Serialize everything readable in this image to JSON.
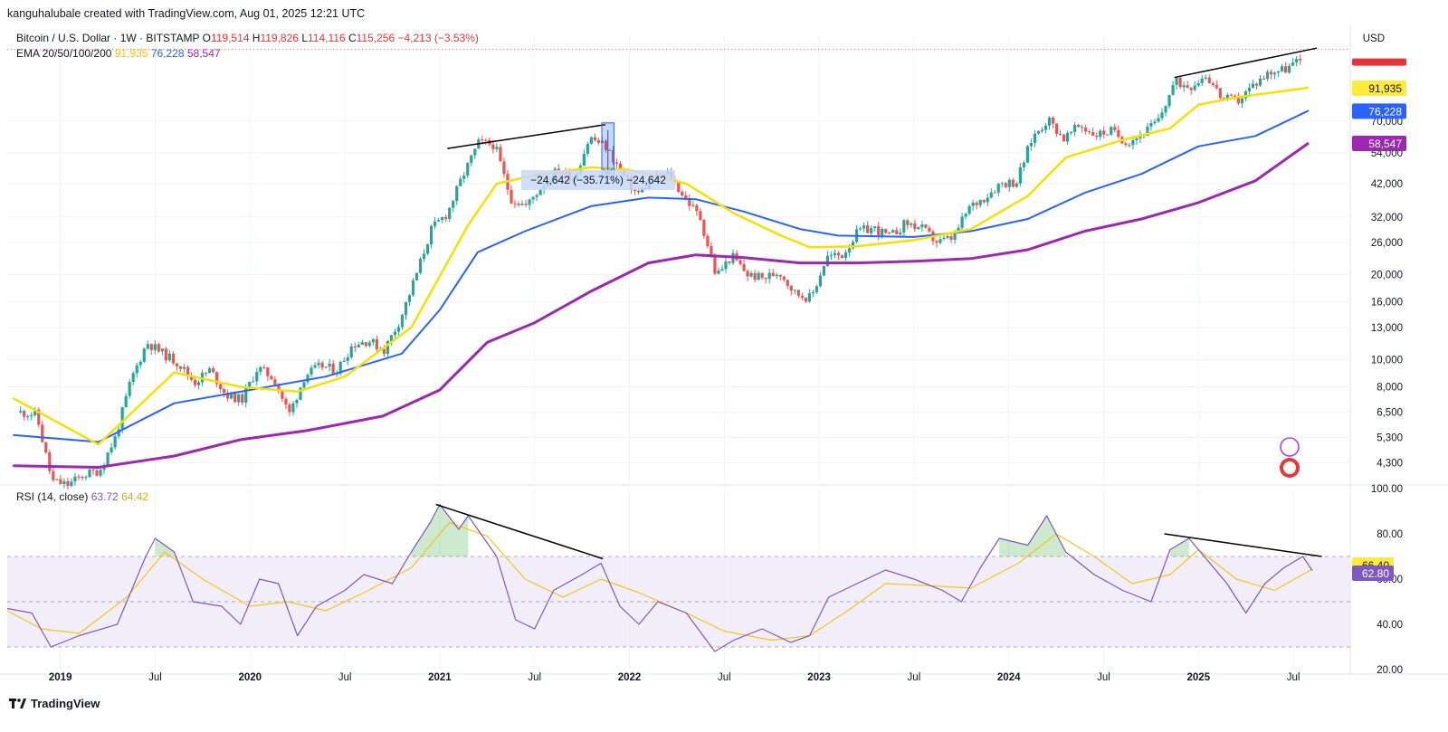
{
  "header": {
    "credit": "kanguhalubale created with TradingView.com, Aug 01, 2025 12:21 UTC",
    "symbol": "Bitcoin / U.S. Dollar · 1W · BITSTAMP",
    "open_label": "O",
    "open": "119,514",
    "high_label": "H",
    "high": "119,826",
    "low_label": "L",
    "low": "114,116",
    "close_label": "C",
    "close": "115,256",
    "change": "−4,213 (−3.53%)",
    "ema_label": "EMA 20/50/100/200",
    "ema20": "91,935",
    "ema50": "76,228",
    "ema100": "58,547",
    "rsi_label": "RSI (14, close)",
    "rsi_value": "63.72",
    "rsi_ma_value": "64.42",
    "currency": "USD"
  },
  "brand": "TradingView",
  "colors": {
    "up": "#26a69a",
    "down": "#ef5350",
    "ema20": "#f7e000",
    "ema50": "#2962ff",
    "ema100": "#9c27b0",
    "rsi": "#7e57c2",
    "rsi_ma": "#f5c518",
    "rsi_band": "#ede7f6",
    "grid": "#f0f3fa",
    "measure": "#2962ff"
  },
  "chart_data": [
    {
      "type": "candlestick",
      "title": "Bitcoin / U.S. Dollar · 1W · BITSTAMP",
      "ylabel": "USD",
      "y_scale": "log",
      "ylim": [
        3700,
        140000
      ],
      "x_range": [
        "2018-09",
        "2025-10"
      ],
      "x_ticks": [
        "2019",
        "Jul",
        "2020",
        "Jul",
        "2021",
        "Jul",
        "2022",
        "Jul",
        "2023",
        "Jul",
        "2024",
        "Jul",
        "2025",
        "Jul"
      ],
      "y_ticks": [
        4300,
        5300,
        6500,
        8000,
        10000,
        13000,
        16000,
        20000,
        26000,
        32000,
        42000,
        54000,
        70000
      ],
      "price_path": [
        [
          "2018-10",
          6500
        ],
        [
          "2018-11",
          6400
        ],
        [
          "2018-12",
          3700
        ],
        [
          "2019-01",
          3600
        ],
        [
          "2019-02",
          3900
        ],
        [
          "2019-03",
          4050
        ],
        [
          "2019-04",
          5300
        ],
        [
          "2019-05",
          8500
        ],
        [
          "2019-06",
          11500
        ],
        [
          "2019-07",
          10500
        ],
        [
          "2019-08",
          9700
        ],
        [
          "2019-09",
          8300
        ],
        [
          "2019-10",
          9200
        ],
        [
          "2019-11",
          7500
        ],
        [
          "2019-12",
          7200
        ],
        [
          "2020-01",
          9350
        ],
        [
          "2020-02",
          8600
        ],
        [
          "2020-03",
          6400
        ],
        [
          "2020-04",
          8800
        ],
        [
          "2020-05",
          9500
        ],
        [
          "2020-06",
          9150
        ],
        [
          "2020-07",
          11300
        ],
        [
          "2020-08",
          11700
        ],
        [
          "2020-09",
          10800
        ],
        [
          "2020-10",
          13800
        ],
        [
          "2020-11",
          19700
        ],
        [
          "2020-12",
          29000
        ],
        [
          "2021-01",
          33000
        ],
        [
          "2021-02",
          45000
        ],
        [
          "2021-03",
          58800
        ],
        [
          "2021-04",
          57700
        ],
        [
          "2021-05",
          37300
        ],
        [
          "2021-06",
          35000
        ],
        [
          "2021-07",
          41500
        ],
        [
          "2021-08",
          47100
        ],
        [
          "2021-09",
          43800
        ],
        [
          "2021-10",
          61300
        ],
        [
          "2021-11",
          57000
        ],
        [
          "2021-12",
          46300
        ],
        [
          "2022-01",
          38500
        ],
        [
          "2022-02",
          43200
        ],
        [
          "2022-03",
          45500
        ],
        [
          "2022-04",
          37700
        ],
        [
          "2022-05",
          31800
        ],
        [
          "2022-06",
          19800
        ],
        [
          "2022-07",
          23300
        ],
        [
          "2022-08",
          20000
        ],
        [
          "2022-09",
          19400
        ],
        [
          "2022-10",
          20500
        ],
        [
          "2022-11",
          17200
        ],
        [
          "2022-12",
          16500
        ],
        [
          "2023-01",
          23100
        ],
        [
          "2023-02",
          23500
        ],
        [
          "2023-03",
          28500
        ],
        [
          "2023-04",
          29200
        ],
        [
          "2023-05",
          27200
        ],
        [
          "2023-06",
          30500
        ],
        [
          "2023-07",
          29200
        ],
        [
          "2023-08",
          26000
        ],
        [
          "2023-09",
          27000
        ],
        [
          "2023-10",
          34500
        ],
        [
          "2023-11",
          37700
        ],
        [
          "2023-12",
          42300
        ],
        [
          "2024-01",
          42600
        ],
        [
          "2024-02",
          61200
        ],
        [
          "2024-03",
          71300
        ],
        [
          "2024-04",
          60600
        ],
        [
          "2024-05",
          67500
        ],
        [
          "2024-06",
          62700
        ],
        [
          "2024-07",
          64600
        ],
        [
          "2024-08",
          59000
        ],
        [
          "2024-09",
          63300
        ],
        [
          "2024-10",
          70300
        ],
        [
          "2024-11",
          96400
        ],
        [
          "2024-12",
          93400
        ],
        [
          "2025-01",
          102400
        ],
        [
          "2025-02",
          84300
        ],
        [
          "2025-03",
          82500
        ],
        [
          "2025-04",
          94200
        ],
        [
          "2025-05",
          104600
        ],
        [
          "2025-06",
          107100
        ],
        [
          "2025-07",
          115256
        ]
      ],
      "ema20": [
        [
          2018.75,
          7300
        ],
        [
          2019.2,
          5000
        ],
        [
          2019.6,
          9000
        ],
        [
          2019.95,
          8000
        ],
        [
          2020.25,
          7700
        ],
        [
          2020.5,
          8700
        ],
        [
          2020.85,
          13000
        ],
        [
          2021.15,
          30000
        ],
        [
          2021.3,
          42000
        ],
        [
          2021.5,
          45000
        ],
        [
          2021.8,
          48000
        ],
        [
          2022.0,
          47000
        ],
        [
          2022.3,
          42000
        ],
        [
          2022.55,
          33000
        ],
        [
          2022.8,
          27500
        ],
        [
          2022.95,
          25000
        ],
        [
          2023.2,
          25200
        ],
        [
          2023.5,
          26500
        ],
        [
          2023.8,
          29000
        ],
        [
          2024.1,
          38000
        ],
        [
          2024.3,
          52000
        ],
        [
          2024.6,
          60000
        ],
        [
          2024.85,
          66000
        ],
        [
          2025.0,
          80000
        ],
        [
          2025.2,
          85000
        ],
        [
          2025.58,
          91935
        ]
      ],
      "ema50": [
        [
          2018.75,
          5400
        ],
        [
          2019.2,
          5100
        ],
        [
          2019.6,
          7000
        ],
        [
          2020.0,
          7800
        ],
        [
          2020.4,
          8700
        ],
        [
          2020.8,
          10500
        ],
        [
          2021.0,
          15000
        ],
        [
          2021.2,
          24000
        ],
        [
          2021.45,
          28500
        ],
        [
          2021.8,
          35000
        ],
        [
          2022.1,
          37500
        ],
        [
          2022.35,
          37000
        ],
        [
          2022.6,
          33500
        ],
        [
          2022.9,
          29000
        ],
        [
          2023.1,
          27500
        ],
        [
          2023.5,
          27200
        ],
        [
          2023.8,
          28500
        ],
        [
          2024.1,
          31500
        ],
        [
          2024.4,
          39000
        ],
        [
          2024.7,
          45500
        ],
        [
          2025.0,
          57000
        ],
        [
          2025.3,
          62000
        ],
        [
          2025.58,
          76228
        ]
      ],
      "ema100": [
        [
          2018.75,
          4200
        ],
        [
          2019.2,
          4150
        ],
        [
          2019.6,
          4550
        ],
        [
          2019.95,
          5200
        ],
        [
          2020.3,
          5600
        ],
        [
          2020.7,
          6300
        ],
        [
          2021.0,
          7800
        ],
        [
          2021.25,
          11500
        ],
        [
          2021.5,
          13500
        ],
        [
          2021.8,
          17500
        ],
        [
          2022.1,
          22000
        ],
        [
          2022.35,
          23500
        ],
        [
          2022.6,
          23000
        ],
        [
          2022.9,
          22000
        ],
        [
          2023.2,
          22000
        ],
        [
          2023.5,
          22300
        ],
        [
          2023.8,
          22800
        ],
        [
          2024.1,
          24500
        ],
        [
          2024.4,
          28500
        ],
        [
          2024.7,
          31500
        ],
        [
          2025.0,
          36000
        ],
        [
          2025.3,
          43000
        ],
        [
          2025.58,
          58547
        ]
      ],
      "trendlines": [
        [
          [
            "2021-01",
            56000
          ],
          [
            "2021-11",
            68000
          ]
        ],
        [
          [
            "2024-11",
            100000
          ],
          [
            "2025-08",
            127000
          ]
        ]
      ],
      "measure": {
        "label": "−24,642 (−35.71%) −24,642",
        "from": [
          "2021-11",
          69000
        ],
        "to": [
          "2021-12",
          44360
        ]
      }
    },
    {
      "type": "line",
      "title": "RSI (14, close)",
      "ylim": [
        20,
        100
      ],
      "y_ticks": [
        20,
        40,
        60,
        80,
        100
      ],
      "bands": {
        "upper": 70,
        "middle": 50,
        "lower": 30
      },
      "rsi": [
        [
          2018.72,
          47
        ],
        [
          2018.85,
          45
        ],
        [
          2018.95,
          30
        ],
        [
          2019.1,
          35
        ],
        [
          2019.3,
          40
        ],
        [
          2019.45,
          70
        ],
        [
          2019.5,
          78
        ],
        [
          2019.6,
          72
        ],
        [
          2019.7,
          50
        ],
        [
          2019.85,
          48
        ],
        [
          2019.95,
          40
        ],
        [
          2020.05,
          60
        ],
        [
          2020.15,
          58
        ],
        [
          2020.25,
          35
        ],
        [
          2020.35,
          48
        ],
        [
          2020.5,
          55
        ],
        [
          2020.6,
          62
        ],
        [
          2020.75,
          58
        ],
        [
          2020.85,
          72
        ],
        [
          2020.95,
          85
        ],
        [
          2021.0,
          93
        ],
        [
          2021.1,
          82
        ],
        [
          2021.15,
          88
        ],
        [
          2021.3,
          70
        ],
        [
          2021.4,
          42
        ],
        [
          2021.5,
          38
        ],
        [
          2021.6,
          55
        ],
        [
          2021.75,
          62
        ],
        [
          2021.85,
          67
        ],
        [
          2021.95,
          48
        ],
        [
          2022.05,
          40
        ],
        [
          2022.15,
          50
        ],
        [
          2022.3,
          45
        ],
        [
          2022.45,
          28
        ],
        [
          2022.55,
          33
        ],
        [
          2022.7,
          38
        ],
        [
          2022.85,
          32
        ],
        [
          2022.95,
          35
        ],
        [
          2023.05,
          52
        ],
        [
          2023.2,
          58
        ],
        [
          2023.35,
          64
        ],
        [
          2023.5,
          60
        ],
        [
          2023.65,
          55
        ],
        [
          2023.75,
          50
        ],
        [
          2023.85,
          65
        ],
        [
          2023.95,
          78
        ],
        [
          2024.1,
          75
        ],
        [
          2024.2,
          88
        ],
        [
          2024.3,
          72
        ],
        [
          2024.45,
          62
        ],
        [
          2024.6,
          55
        ],
        [
          2024.75,
          50
        ],
        [
          2024.85,
          73
        ],
        [
          2024.95,
          78
        ],
        [
          2025.05,
          68
        ],
        [
          2025.15,
          58
        ],
        [
          2025.25,
          45
        ],
        [
          2025.35,
          58
        ],
        [
          2025.45,
          65
        ],
        [
          2025.55,
          70
        ],
        [
          2025.6,
          63.72
        ]
      ],
      "rsi_ma": [
        [
          2018.72,
          46
        ],
        [
          2018.9,
          38
        ],
        [
          2019.1,
          36
        ],
        [
          2019.35,
          52
        ],
        [
          2019.55,
          72
        ],
        [
          2019.75,
          60
        ],
        [
          2020.0,
          48
        ],
        [
          2020.2,
          50
        ],
        [
          2020.4,
          46
        ],
        [
          2020.6,
          54
        ],
        [
          2020.85,
          65
        ],
        [
          2021.05,
          85
        ],
        [
          2021.25,
          79
        ],
        [
          2021.45,
          60
        ],
        [
          2021.65,
          52
        ],
        [
          2021.85,
          60
        ],
        [
          2022.05,
          54
        ],
        [
          2022.3,
          45
        ],
        [
          2022.5,
          37
        ],
        [
          2022.75,
          33
        ],
        [
          2022.95,
          35
        ],
        [
          2023.15,
          46
        ],
        [
          2023.35,
          58
        ],
        [
          2023.6,
          57
        ],
        [
          2023.8,
          56
        ],
        [
          2024.05,
          67
        ],
        [
          2024.25,
          80
        ],
        [
          2024.45,
          70
        ],
        [
          2024.65,
          58
        ],
        [
          2024.85,
          62
        ],
        [
          2025.0,
          73
        ],
        [
          2025.2,
          60
        ],
        [
          2025.4,
          55
        ],
        [
          2025.6,
          64.42
        ]
      ],
      "trendlines": [
        [
          [
            2020.98,
            93
          ],
          [
            2021.86,
            69
          ]
        ],
        [
          [
            2024.82,
            80
          ],
          [
            2025.65,
            70
          ]
        ]
      ]
    }
  ]
}
